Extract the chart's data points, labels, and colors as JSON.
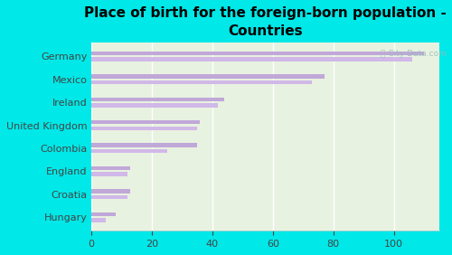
{
  "title": "Place of birth for the foreign-born population -\nCountries",
  "categories": [
    "Germany",
    "Mexico",
    "Ireland",
    "United Kingdom",
    "Colombia",
    "England",
    "Croatia",
    "Hungary"
  ],
  "bar1_values": [
    110,
    77,
    44,
    36,
    35,
    13,
    13,
    8
  ],
  "bar2_values": [
    106,
    73,
    42,
    35,
    25,
    12,
    12,
    5
  ],
  "bar_color1": "#c0a8d8",
  "bar_color2": "#d0b8e8",
  "background_outer": "#00e8e8",
  "background_inner": "#e8f2e0",
  "xlim": [
    0,
    115
  ],
  "xticks": [
    0,
    20,
    40,
    60,
    80,
    100
  ],
  "bar_height": 0.18,
  "bar_gap": 0.08,
  "title_fontsize": 11,
  "tick_fontsize": 8,
  "label_fontsize": 8
}
